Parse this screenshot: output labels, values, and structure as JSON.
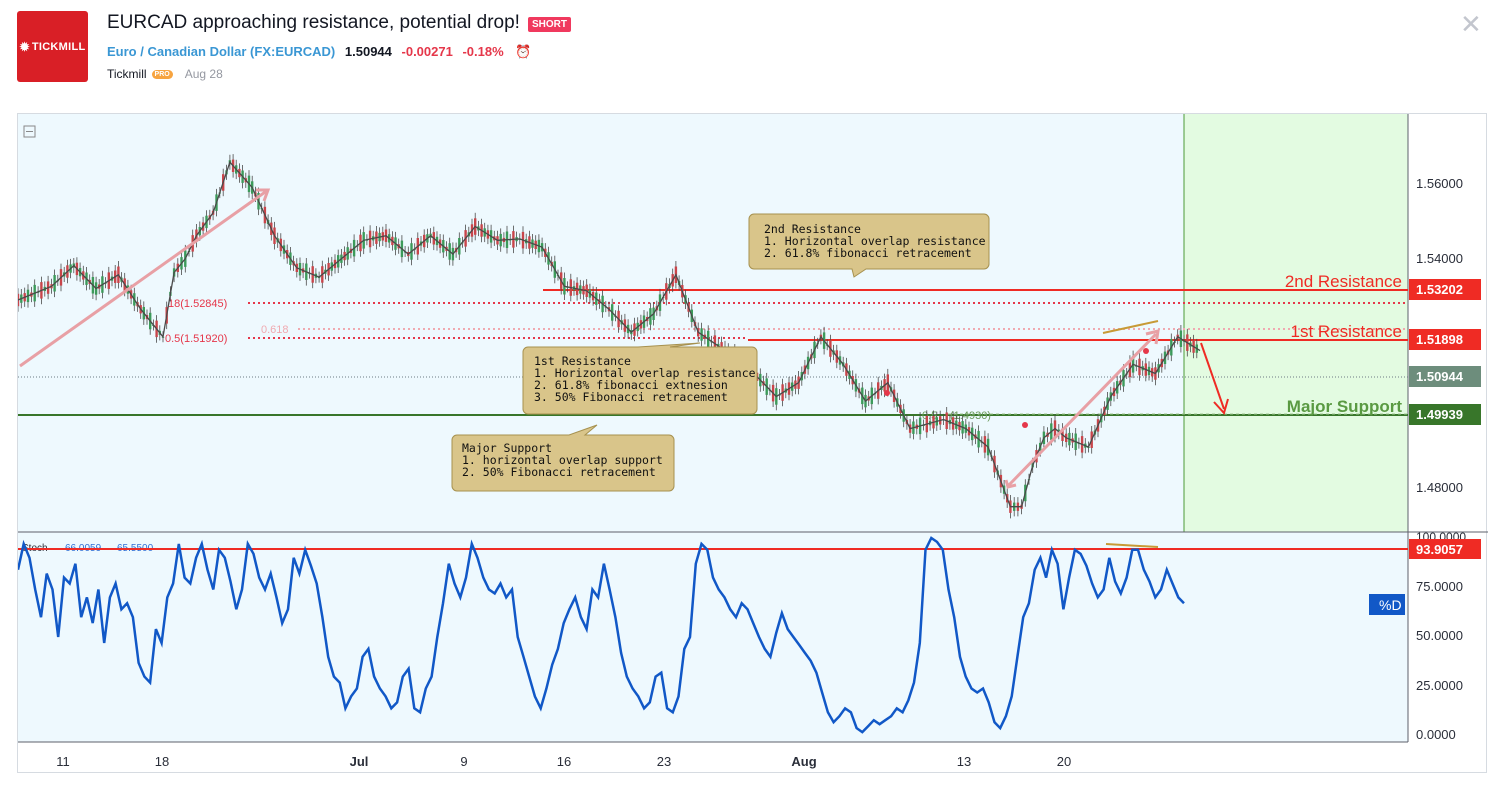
{
  "header": {
    "logo_text": "TICKMILL",
    "title": "EURCAD approaching resistance, potential drop!",
    "badge": "SHORT",
    "symbol_name": "Euro / Canadian Dollar",
    "symbol_code": "(FX:EURCAD)",
    "price": "1.50944",
    "change": "-0.00271",
    "change_pct": "-0.18%",
    "author": "Tickmill",
    "author_badge": "PRO",
    "date": "Aug 28",
    "colors": {
      "brand": "#d91f26",
      "negative": "#e5374a",
      "link": "#3a97d4",
      "badge": "#f0395e"
    }
  },
  "chart_data": [
    {
      "type": "line",
      "instrument": "EURCAD",
      "y_ticks": [
        "1.56000",
        "1.54000",
        "1.48000"
      ],
      "ylim": [
        1.476,
        1.567
      ],
      "x_tick_labels": [
        "11",
        "18",
        "Jul",
        "9",
        "16",
        "23",
        "Aug",
        "13",
        "20"
      ],
      "price_path": {
        "x": [
          0,
          6,
          10,
          14,
          18,
          22,
          26,
          28,
          30,
          32,
          35,
          38,
          42,
          46,
          50,
          54,
          58,
          62,
          66,
          70,
          74,
          78,
          82,
          86,
          90,
          94,
          98,
          102,
          106,
          110,
          114,
          118,
          122,
          128,
          132,
          136,
          140,
          144,
          148,
          152,
          156,
          160,
          166,
          170,
          174,
          178,
          180,
          182,
          184,
          186,
          188,
          192,
          196,
          200,
          204,
          208,
          212
        ],
        "y": [
          1.5265,
          1.5295,
          1.534,
          1.529,
          1.532,
          1.5245,
          1.5185,
          1.5325,
          1.5355,
          1.5405,
          1.5455,
          1.5565,
          1.551,
          1.5405,
          1.5335,
          1.5315,
          1.5355,
          1.5395,
          1.5405,
          1.5365,
          1.5405,
          1.5365,
          1.5425,
          1.5395,
          1.5398,
          1.538,
          1.5295,
          1.5285,
          1.5245,
          1.5195,
          1.5235,
          1.532,
          1.5195,
          1.5145,
          1.5105,
          1.5055,
          1.5085,
          1.5185,
          1.5125,
          1.5045,
          1.5085,
          1.4985,
          1.5005,
          1.4985,
          1.4945,
          1.4815,
          1.4815,
          1.4905,
          1.4965,
          1.4985,
          1.4965,
          1.4945,
          1.5055,
          1.5125,
          1.5105,
          1.5185,
          1.5155
        ]
      },
      "last_price": "1.50944",
      "price_labels": [
        {
          "name": "2nd Resistance",
          "value": "1.53202",
          "color": "#ef2b24"
        },
        {
          "name": "1st Resistance",
          "value": "1.51898",
          "color": "#ef2b24"
        },
        {
          "name": "Major Support",
          "value": "1.49939",
          "color": "#38762a"
        }
      ],
      "fib_labels": {
        "f1": "18(1.52845)",
        "f2": "0.5(1.51920)",
        "f3": "0.618",
        "f4": "0.5",
        "f5": "(1.4930)"
      },
      "annotations": [
        {
          "title": "2nd Resistance",
          "lines": [
            "1. Horizontal overlap resistance",
            "2. 61.8% fibonacci retracement"
          ]
        },
        {
          "title": "1st Resistance",
          "lines": [
            "1. Horizontal overlap resistance",
            "2. 61.8% fibonacci extnesion",
            "3. 50% Fibonacci retracement"
          ]
        },
        {
          "title": "Major Support",
          "lines": [
            "1. horizontal overlap support",
            "2. 50% Fibonacci retracement"
          ]
        }
      ],
      "forecast": "drop from 1st Resistance to Major Support",
      "grid": false
    },
    {
      "type": "line",
      "indicator": "Stoch",
      "k_value": "66.0059",
      "d_value": "65.5500",
      "series_label": "%D",
      "y_ticks": [
        "100.0000",
        "75.0000",
        "50.0000",
        "25.0000",
        "0.0000"
      ],
      "ylim": [
        -5,
        100
      ],
      "level": "93.9057",
      "values": [
        82,
        95,
        88,
        72,
        58,
        80,
        72,
        48,
        78,
        75,
        85,
        58,
        68,
        55,
        72,
        45,
        68,
        75,
        62,
        65,
        58,
        35,
        28,
        25,
        52,
        45,
        68,
        75,
        95,
        78,
        75,
        88,
        95,
        82,
        72,
        92,
        88,
        76,
        62,
        72,
        95,
        90,
        78,
        72,
        80,
        68,
        55,
        62,
        88,
        80,
        92,
        84,
        75,
        58,
        38,
        28,
        25,
        12,
        18,
        22,
        38,
        42,
        28,
        22,
        18,
        12,
        15,
        28,
        32,
        12,
        10,
        22,
        28,
        48,
        65,
        85,
        75,
        68,
        78,
        95,
        88,
        78,
        72,
        70,
        75,
        68,
        72,
        48,
        38,
        28,
        18,
        12,
        22,
        34,
        42,
        55,
        62,
        68,
        58,
        52,
        72,
        68,
        85,
        72,
        58,
        40,
        28,
        22,
        18,
        12,
        15,
        28,
        30,
        12,
        10,
        18,
        42,
        48,
        85,
        95,
        92,
        78,
        72,
        68,
        62,
        58,
        65,
        62,
        55,
        48,
        42,
        38,
        50,
        60,
        52,
        48,
        44,
        40,
        36,
        30,
        20,
        10,
        5,
        8,
        12,
        10,
        2,
        0,
        3,
        6,
        4,
        6,
        8,
        12,
        10,
        16,
        25,
        45,
        92,
        98,
        96,
        92,
        72,
        58,
        38,
        28,
        22,
        20,
        22,
        15,
        5,
        2,
        8,
        18,
        38,
        58,
        65,
        82,
        88,
        78,
        92,
        85,
        62,
        78,
        92,
        90,
        84,
        75,
        68,
        72,
        88,
        76,
        70,
        78,
        92,
        92,
        82,
        76,
        68,
        72,
        82,
        75,
        68,
        65
      ]
    }
  ]
}
